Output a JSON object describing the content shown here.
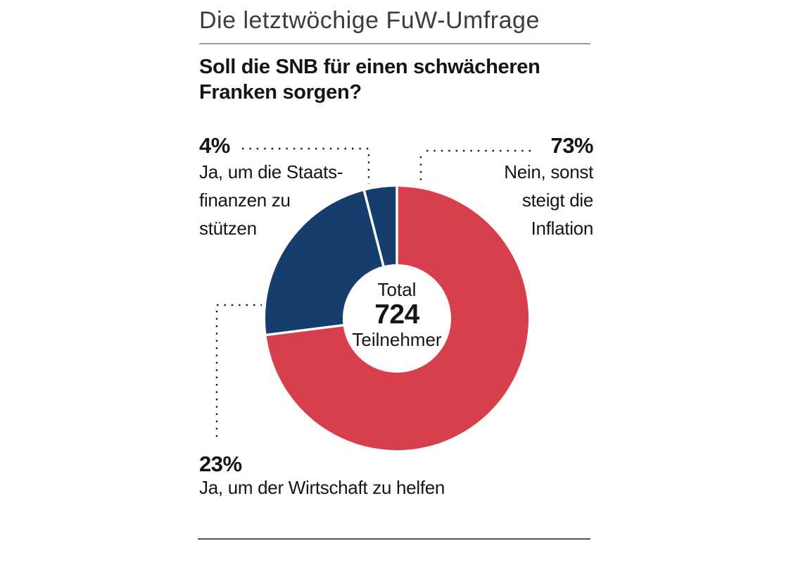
{
  "colors": {
    "red": "#d73f4d",
    "blue": "#163e6c",
    "title_text": "#3c3c3c",
    "body_text": "#151515",
    "rule_light": "#9b9b9b",
    "rule_dark": "#565656",
    "leader": "#1a1a1a"
  },
  "header": {
    "kicker": "Die letztwöchige FuW-Umfrage",
    "question_line1": "Soll die SNB für einen schwächeren",
    "question_line2": "Franken sorgen?"
  },
  "chart_data": {
    "type": "pie",
    "title": "Soll die SNB für einen schwächeren Franken sorgen?",
    "subtitle": "Die letztwöchige FuW-Umfrage",
    "start_angle_deg": 0,
    "direction": "clockwise",
    "donut": true,
    "legend_position": "callouts",
    "center": {
      "label_top": "Total",
      "value": "724",
      "label_bottom": "Teilnehmer"
    },
    "slices": [
      {
        "name": "Nein, sonst steigt die Inflation",
        "pct": 73,
        "color": "#d73f4d"
      },
      {
        "name": "Ja, um der Wirtschaft zu helfen",
        "pct": 23,
        "color": "#163e6c"
      },
      {
        "name": "Ja, um die Staatsfinanzen zu stützen",
        "pct": 4,
        "color": "#163e6c"
      }
    ]
  },
  "callouts": {
    "staatsfinanzen": {
      "pct_label": "4%",
      "lines": [
        "Ja, um die Staats-",
        "finanzen zu",
        "stützen"
      ]
    },
    "inflation": {
      "pct_label": "73%",
      "lines": [
        "Nein, sonst",
        "steigt die",
        "Inflation"
      ]
    },
    "wirtschaft": {
      "pct_label": "23%",
      "lines": [
        "Ja, um der Wirtschaft zu helfen"
      ]
    }
  }
}
